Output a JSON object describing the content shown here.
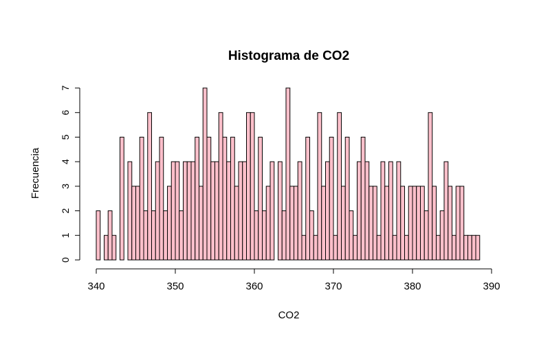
{
  "chart_data": {
    "type": "bar",
    "title": "Histograma de CO2",
    "xlabel": "CO2",
    "ylabel": "Frecuencia",
    "bar_color": "#FFC0CB",
    "xlim": [
      340,
      390
    ],
    "ylim": [
      0,
      7
    ],
    "xticks": [
      340,
      350,
      360,
      370,
      380,
      390
    ],
    "yticks": [
      0,
      1,
      2,
      3,
      4,
      5,
      6,
      7
    ],
    "bin_start": 340.0,
    "bin_width": 0.5,
    "values": [
      2,
      0,
      1,
      2,
      1,
      0,
      5,
      0,
      4,
      3,
      3,
      5,
      2,
      6,
      2,
      4,
      5,
      2,
      3,
      4,
      4,
      2,
      4,
      4,
      4,
      5,
      3,
      7,
      5,
      4,
      4,
      6,
      5,
      4,
      5,
      3,
      4,
      4,
      6,
      6,
      2,
      5,
      2,
      3,
      4,
      0,
      4,
      2,
      7,
      3,
      3,
      4,
      1,
      5,
      2,
      1,
      6,
      3,
      4,
      5,
      1,
      6,
      3,
      5,
      2,
      1,
      4,
      5,
      4,
      3,
      3,
      1,
      4,
      3,
      4,
      1,
      4,
      3,
      1,
      3,
      3,
      3,
      3,
      2,
      6,
      3,
      1,
      2,
      4,
      3,
      1,
      3,
      3,
      1,
      1,
      1,
      1
    ]
  }
}
